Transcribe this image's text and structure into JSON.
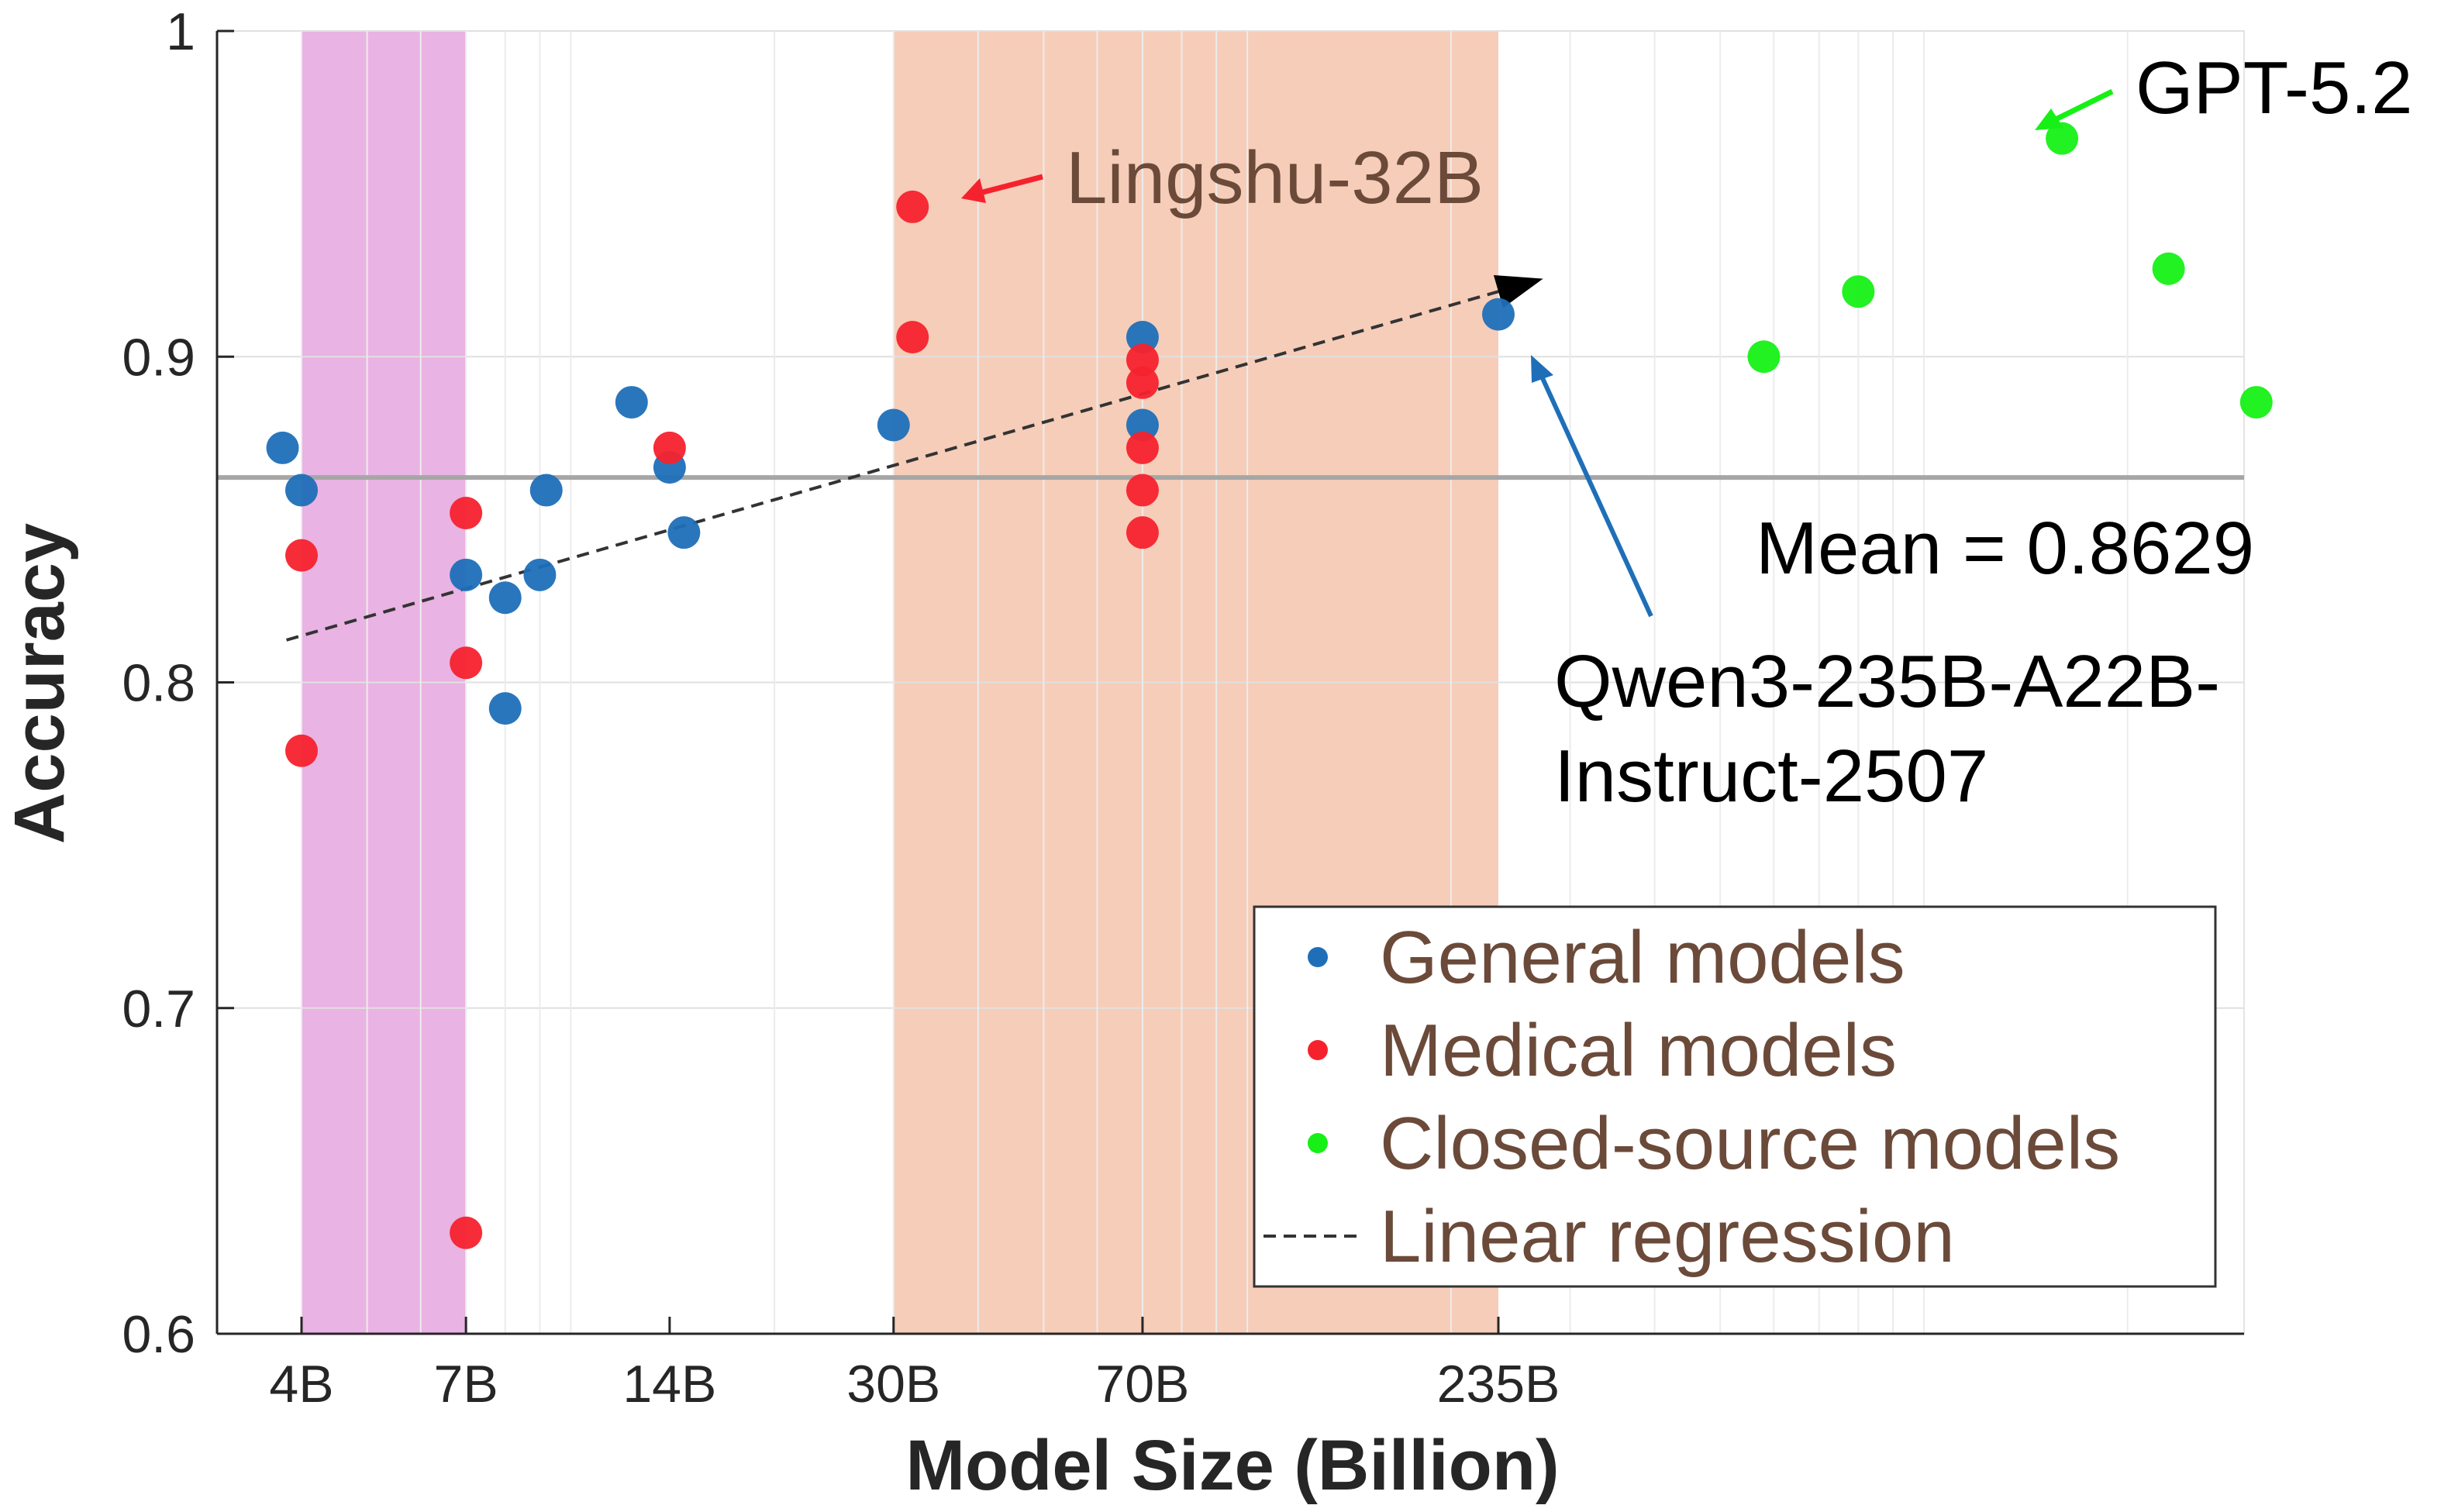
{
  "chart_data": {
    "type": "scatter",
    "title": "",
    "xlabel": "Model Size (Billion)",
    "ylabel": "Accuracy",
    "ylim": [
      0.6,
      1.0
    ],
    "x_scale": "log",
    "x_ticks": [
      {
        "value": 4,
        "label": "4B"
      },
      {
        "value": 7,
        "label": "7B"
      },
      {
        "value": 14,
        "label": "14B"
      },
      {
        "value": 30,
        "label": "30B"
      },
      {
        "value": 70,
        "label": "70B"
      },
      {
        "value": 235,
        "label": "235B"
      }
    ],
    "y_ticks": [
      {
        "value": 0.6,
        "label": "0.6"
      },
      {
        "value": 0.7,
        "label": "0.7"
      },
      {
        "value": 0.8,
        "label": "0.8"
      },
      {
        "value": 0.9,
        "label": "0.9"
      },
      {
        "value": 1.0,
        "label": "1"
      }
    ],
    "grid": true,
    "bands": [
      {
        "name": "small-band",
        "x_range": [
          4,
          7
        ],
        "color": "#e9b3e3"
      },
      {
        "name": "large-band",
        "x_range": [
          30,
          235
        ],
        "color": "#f6cdb9"
      }
    ],
    "series": [
      {
        "name": "General models",
        "color": "#1f6fb8",
        "points": [
          {
            "x": 3.75,
            "y": 0.872
          },
          {
            "x": 4.0,
            "y": 0.859
          },
          {
            "x": 7.0,
            "y": 0.833
          },
          {
            "x": 8.0,
            "y": 0.826
          },
          {
            "x": 8.0,
            "y": 0.792
          },
          {
            "x": 9.0,
            "y": 0.833
          },
          {
            "x": 9.2,
            "y": 0.859
          },
          {
            "x": 12.3,
            "y": 0.886
          },
          {
            "x": 14.0,
            "y": 0.866
          },
          {
            "x": 14.7,
            "y": 0.846
          },
          {
            "x": 30.0,
            "y": 0.879
          },
          {
            "x": 70.0,
            "y": 0.906
          },
          {
            "x": 70.0,
            "y": 0.879
          },
          {
            "x": 235.0,
            "y": 0.913
          }
        ]
      },
      {
        "name": "Medical models",
        "color": "#f5222d",
        "points": [
          {
            "x": 4.0,
            "y": 0.839
          },
          {
            "x": 4.0,
            "y": 0.779
          },
          {
            "x": 7.0,
            "y": 0.852
          },
          {
            "x": 7.0,
            "y": 0.806
          },
          {
            "x": 7.0,
            "y": 0.631
          },
          {
            "x": 14.0,
            "y": 0.872
          },
          {
            "x": 32.0,
            "y": 0.946
          },
          {
            "x": 32.0,
            "y": 0.906
          },
          {
            "x": 70.0,
            "y": 0.899
          },
          {
            "x": 70.0,
            "y": 0.892
          },
          {
            "x": 70.0,
            "y": 0.872
          },
          {
            "x": 70.0,
            "y": 0.859
          },
          {
            "x": 70.0,
            "y": 0.846
          }
        ]
      },
      {
        "name": "Closed-source models",
        "color": "#16f016",
        "points": [
          {
            "x": 580,
            "y": 0.9
          },
          {
            "x": 800,
            "y": 0.92
          },
          {
            "x": 1600,
            "y": 0.967
          },
          {
            "x": 2300,
            "y": 0.927
          },
          {
            "x": 3100,
            "y": 0.886
          }
        ]
      }
    ],
    "regression": {
      "name": "Linear regression",
      "x": [
        3.8,
        235
      ],
      "y": [
        0.813,
        0.92
      ]
    },
    "mean_line": {
      "value": 0.8629,
      "label": "Mean = 0.8629"
    },
    "annotations": [
      {
        "name": "gpt",
        "text": "GPT-5.2",
        "color": "#16f016"
      },
      {
        "name": "lingshu",
        "text": "Lingshu-32B",
        "color": "#f5222d"
      },
      {
        "name": "qwen",
        "text_lines": [
          "Qwen3-235B-A22B-",
          "Instruct-2507"
        ],
        "color": "#1f6fb8"
      }
    ],
    "legend": {
      "location": "bottom-right",
      "entries": [
        "General models",
        "Medical models",
        "Closed-source models",
        "Linear regression"
      ]
    }
  }
}
